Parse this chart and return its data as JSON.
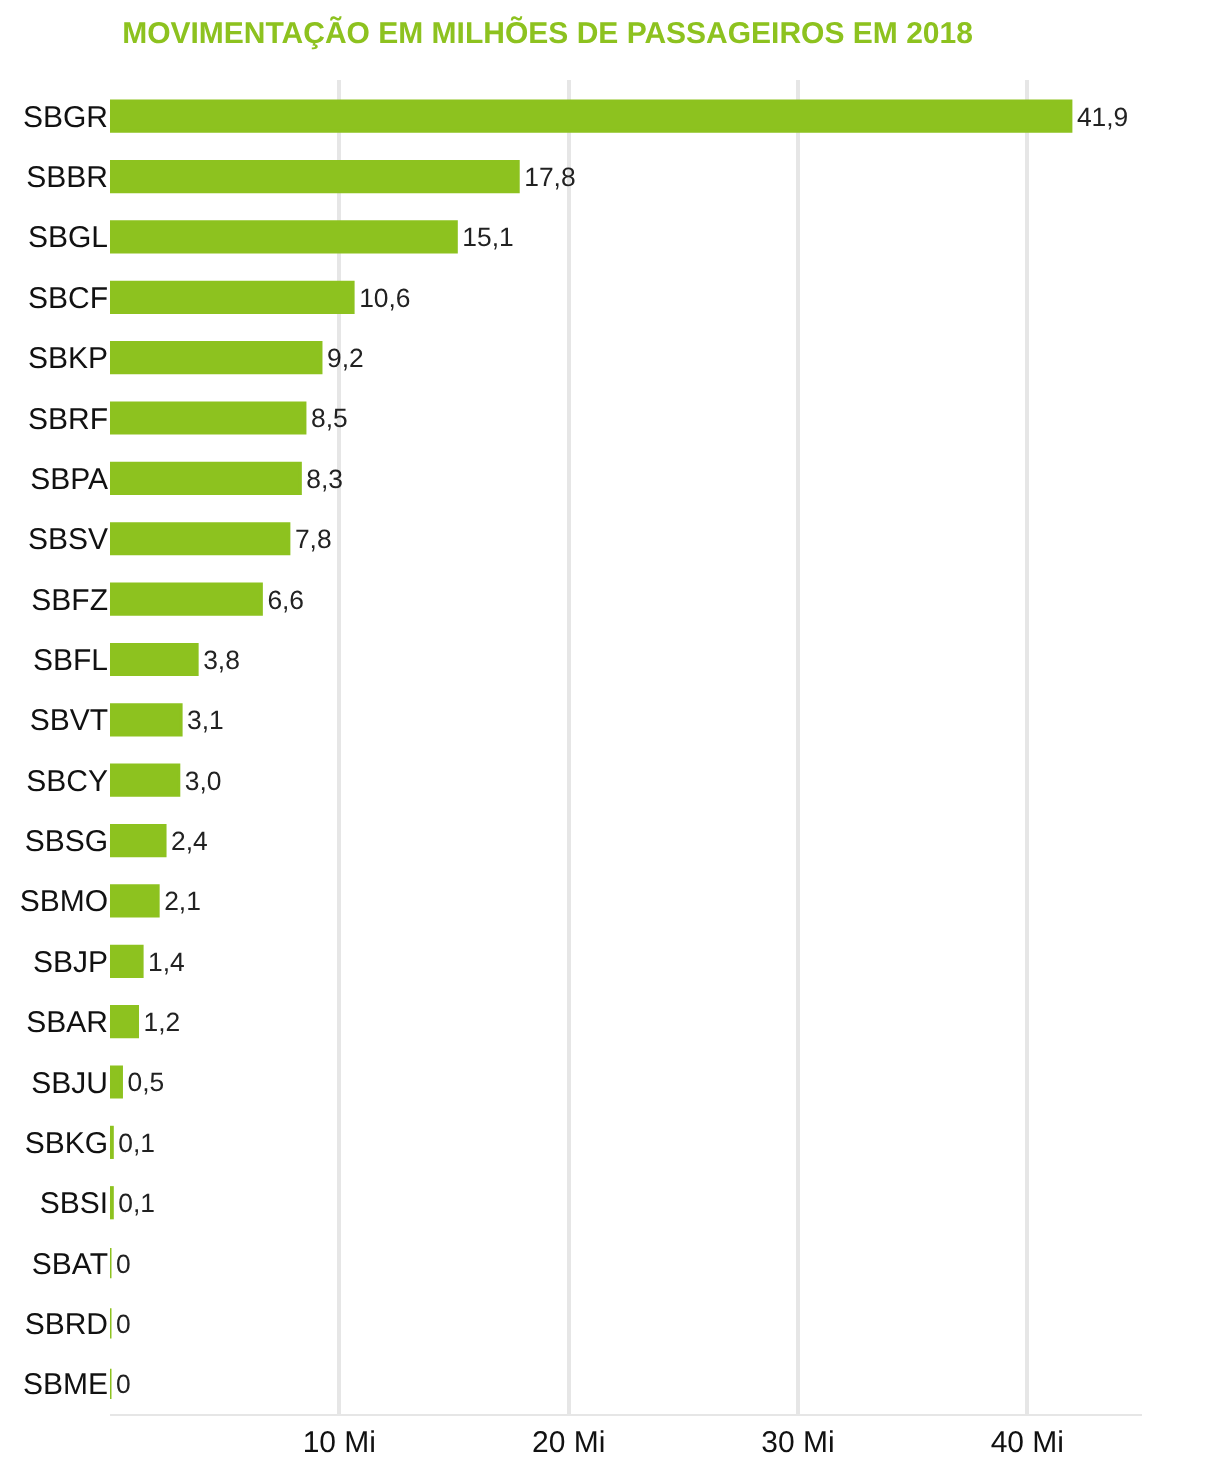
{
  "chart_data": {
    "type": "bar",
    "orientation": "horizontal",
    "title": "MOVIMENTAÇÃO EM MILHÕES DE PASSAGEIROS EM 2018",
    "categories": [
      "SBGR",
      "SBBR",
      "SBGL",
      "SBCF",
      "SBKP",
      "SBRF",
      "SBPA",
      "SBSV",
      "SBFZ",
      "SBFL",
      "SBVT",
      "SBCY",
      "SBSG",
      "SBMO",
      "SBJP",
      "SBAR",
      "SBJU",
      "SBKG",
      "SBSI",
      "SBAT",
      "SBRD",
      "SBME"
    ],
    "values": [
      41.9,
      17.8,
      15.1,
      10.6,
      9.2,
      8.5,
      8.3,
      7.8,
      6.6,
      3.8,
      3.1,
      3.0,
      2.4,
      2.1,
      1.4,
      1.2,
      0.5,
      0.1,
      0.1,
      0,
      0,
      0
    ],
    "value_labels": [
      "41,9",
      "17,8",
      "15,1",
      "10,6",
      "9,2",
      "8,5",
      "8,3",
      "7,8",
      "6,6",
      "3,8",
      "3,1",
      "3,0",
      "2,4",
      "2,1",
      "1,4",
      "1,2",
      "0,5",
      "0,1",
      "0,1",
      "0",
      "0",
      "0"
    ],
    "color": "#8dc21f",
    "xlim": [
      0,
      45
    ],
    "xticks": [
      {
        "value": 10,
        "label": "10 Mi"
      },
      {
        "value": 20,
        "label": "20 Mi"
      },
      {
        "value": 30,
        "label": "30 Mi"
      },
      {
        "value": 40,
        "label": "40 Mi"
      }
    ],
    "grid": "x"
  }
}
